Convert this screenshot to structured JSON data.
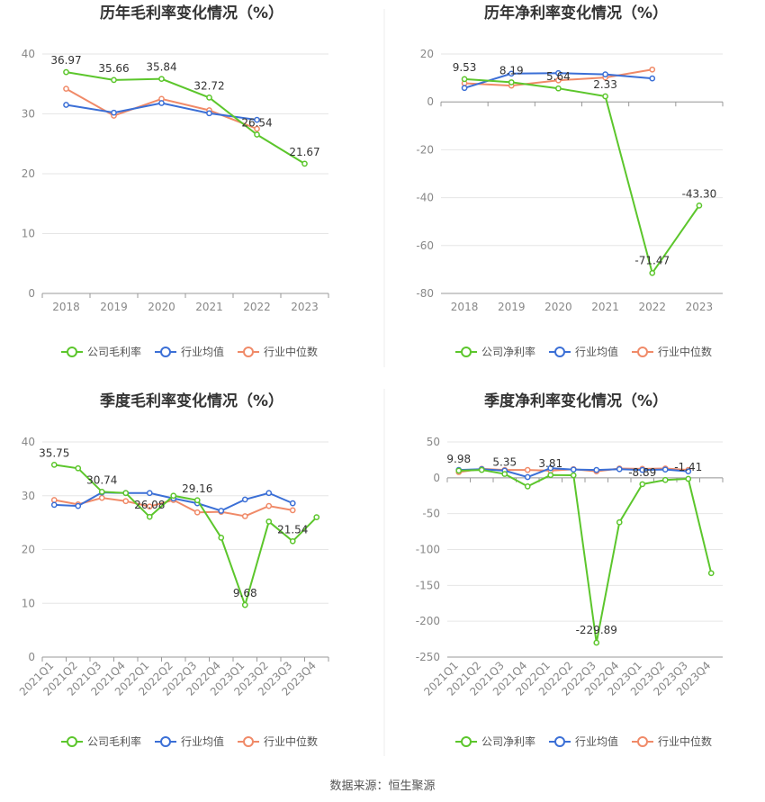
{
  "source_text": "数据来源：恒生聚源",
  "legend_labels": {
    "gross": [
      "公司毛利率",
      "行业均值",
      "行业中位数"
    ],
    "net": [
      "公司净利率",
      "行业均值",
      "行业中位数"
    ]
  },
  "colors": {
    "company": "#5cc62c",
    "mean": "#3b6fd6",
    "median": "#f08a68",
    "grid": "#e6e6e6",
    "axis": "#999999",
    "text": "#666666",
    "title": "#333333"
  },
  "chart_data": [
    {
      "type": "line",
      "title": "历年毛利率变化情况（%）",
      "categories": [
        "2018",
        "2019",
        "2020",
        "2021",
        "2022",
        "2023"
      ],
      "yticks": [
        0,
        10,
        20,
        30,
        40
      ],
      "ylim": [
        0,
        40
      ],
      "series": [
        {
          "name": "公司毛利率",
          "values": [
            36.97,
            35.66,
            35.84,
            32.72,
            26.54,
            21.67
          ]
        },
        {
          "name": "行业均值",
          "values": [
            31.5,
            30.2,
            31.8,
            30.1,
            29.0,
            null
          ]
        },
        {
          "name": "行业中位数",
          "values": [
            34.2,
            29.7,
            32.5,
            30.6,
            27.5,
            null
          ]
        }
      ],
      "data_labels": [
        "36.97",
        "35.66",
        "35.84",
        "32.72",
        "26.54",
        "21.67"
      ]
    },
    {
      "type": "line",
      "title": "历年净利率变化情况（%）",
      "categories": [
        "2018",
        "2019",
        "2020",
        "2021",
        "2022",
        "2023"
      ],
      "yticks": [
        20,
        0,
        -20,
        -40,
        -60,
        -80
      ],
      "ylim": [
        -80,
        20
      ],
      "series": [
        {
          "name": "公司净利率",
          "values": [
            9.53,
            8.19,
            5.64,
            2.33,
            -71.47,
            -43.3
          ]
        },
        {
          "name": "行业均值",
          "values": [
            5.8,
            11.8,
            12.0,
            11.5,
            9.8,
            null
          ]
        },
        {
          "name": "行业中位数",
          "values": [
            7.8,
            6.8,
            9.0,
            10.2,
            13.5,
            null
          ]
        }
      ],
      "data_labels": [
        "9.53",
        "8.19",
        "5.64",
        "2.33",
        "-71.47",
        "-43.30"
      ]
    },
    {
      "type": "line",
      "title": "季度毛利率变化情况（%）",
      "categories": [
        "2021Q1",
        "2021Q2",
        "2021Q3",
        "2021Q4",
        "2022Q1",
        "2022Q2",
        "2022Q3",
        "2022Q4",
        "2023Q1",
        "2023Q2",
        "2023Q3",
        "2023Q4"
      ],
      "yticks": [
        0,
        10,
        20,
        30,
        40
      ],
      "ylim": [
        0,
        40
      ],
      "series": [
        {
          "name": "公司毛利率",
          "values": [
            35.75,
            35.1,
            30.74,
            30.5,
            26.08,
            30.0,
            29.16,
            22.2,
            9.68,
            25.2,
            21.54,
            26.0
          ]
        },
        {
          "name": "行业均值",
          "values": [
            28.3,
            28.1,
            30.6,
            30.5,
            30.5,
            29.5,
            28.6,
            27.2,
            29.3,
            30.5,
            28.6,
            null
          ]
        },
        {
          "name": "行业中位数",
          "values": [
            29.2,
            28.4,
            29.6,
            29.0,
            28.0,
            29.2,
            26.9,
            27.0,
            26.2,
            28.1,
            27.3,
            null
          ]
        }
      ],
      "data_labels": [
        "35.75",
        "",
        "30.74",
        "",
        "26.08",
        "",
        "29.16",
        "",
        "9.68",
        "",
        "21.54",
        ""
      ]
    },
    {
      "type": "line",
      "title": "季度净利率变化情况（%）",
      "categories": [
        "2021Q1",
        "2021Q2",
        "2021Q3",
        "2021Q4",
        "2022Q1",
        "2022Q2",
        "2022Q3",
        "2022Q4",
        "2023Q1",
        "2023Q2",
        "2023Q3",
        "2023Q4"
      ],
      "yticks": [
        50,
        0,
        -50,
        -100,
        -150,
        -200,
        -250
      ],
      "ylim": [
        -250,
        50
      ],
      "series": [
        {
          "name": "公司净利率",
          "values": [
            9.98,
            11.0,
            5.35,
            -12.0,
            3.81,
            3.5,
            -229.89,
            -62.0,
            -8.89,
            -3.0,
            -1.41,
            -133.0
          ]
        },
        {
          "name": "行业均值",
          "values": [
            11.0,
            12.0,
            10.0,
            1.0,
            13.5,
            11.5,
            11.0,
            12.0,
            11.0,
            11.5,
            9.0,
            null
          ]
        },
        {
          "name": "行业中位数",
          "values": [
            8.0,
            12.5,
            11.0,
            11.0,
            10.0,
            12.0,
            9.0,
            13.0,
            12.5,
            13.0,
            11.0,
            null
          ]
        }
      ],
      "data_labels": [
        "9.98",
        "",
        "5.35",
        "",
        "3.81",
        "",
        "-229.89",
        "",
        "-8.89",
        "",
        "-1.41",
        ""
      ]
    }
  ]
}
